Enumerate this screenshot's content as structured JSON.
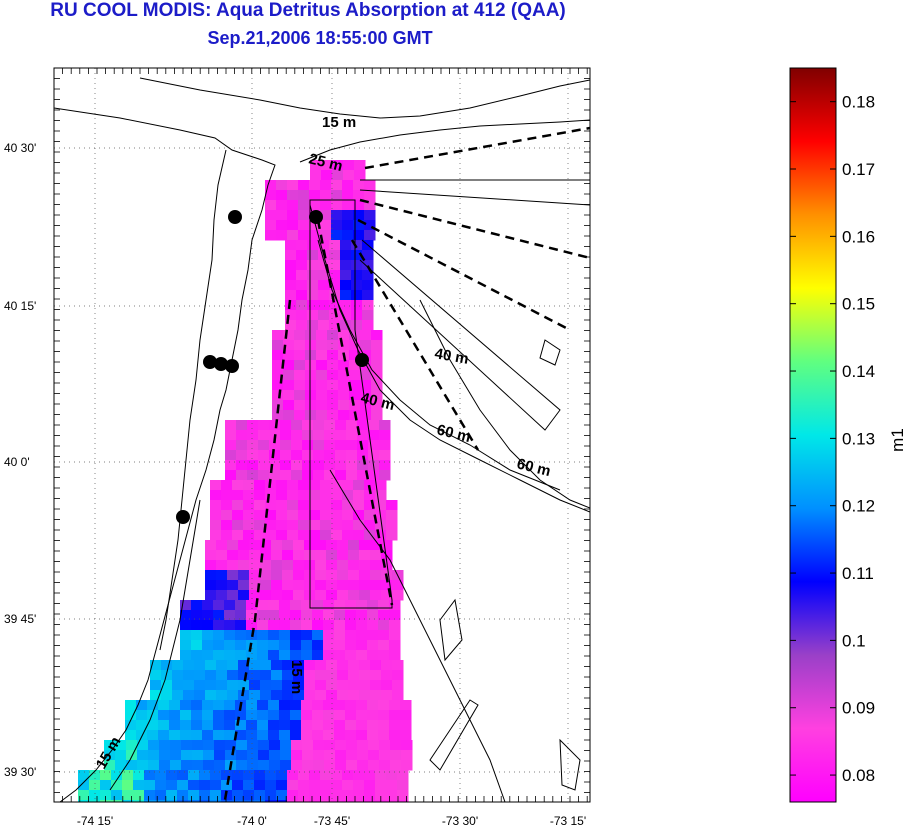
{
  "figure": {
    "title": "RU COOL MODIS: Aqua Detritus Absorption at 412 (QAA)",
    "subtitle": "Sep.21,2006 18:55:00 GMT"
  },
  "map": {
    "x_tick_labels": [
      "-74 15'",
      "-74 0'",
      "-73 45'",
      "-73 30'",
      "-73 15'"
    ],
    "y_tick_labels": [
      "40 30'",
      "40 15'",
      "40 0'",
      "39 45'",
      "39 30'"
    ],
    "grid": "dotted",
    "depth_labels": [
      "15 m",
      "25 m",
      "40 m",
      "40 m",
      "60 m",
      "60 m",
      "15 m",
      "15 m"
    ],
    "station_count": 7
  },
  "colorbar": {
    "label": "m1",
    "tick_labels": [
      "0.18",
      "0.17",
      "0.16",
      "0.15",
      "0.14",
      "0.13",
      "0.12",
      "0.11",
      "0.1",
      "0.09",
      "0.08"
    ],
    "range": [
      0.076,
      0.185
    ],
    "colormap": [
      "#ff00ff",
      "#ff40e0",
      "#9a40c8",
      "#0000ff",
      "#0090ff",
      "#00e8e8",
      "#60ff80",
      "#ffff00",
      "#ff9000",
      "#ff0000",
      "#800000"
    ]
  },
  "chart_data": {
    "type": "heatmap",
    "title": "RU COOL MODIS: Aqua Detritus Absorption at 412 (QAA)",
    "colorbar_label": "m1",
    "value_range": [
      0.076,
      0.185
    ],
    "x_ticks": [
      "-74 15'",
      "-74 0'",
      "-73 45'",
      "-73 30'",
      "-73 15'"
    ],
    "y_ticks": [
      "40 30'",
      "40 15'",
      "40 0'",
      "39 45'",
      "39 30'"
    ]
  }
}
